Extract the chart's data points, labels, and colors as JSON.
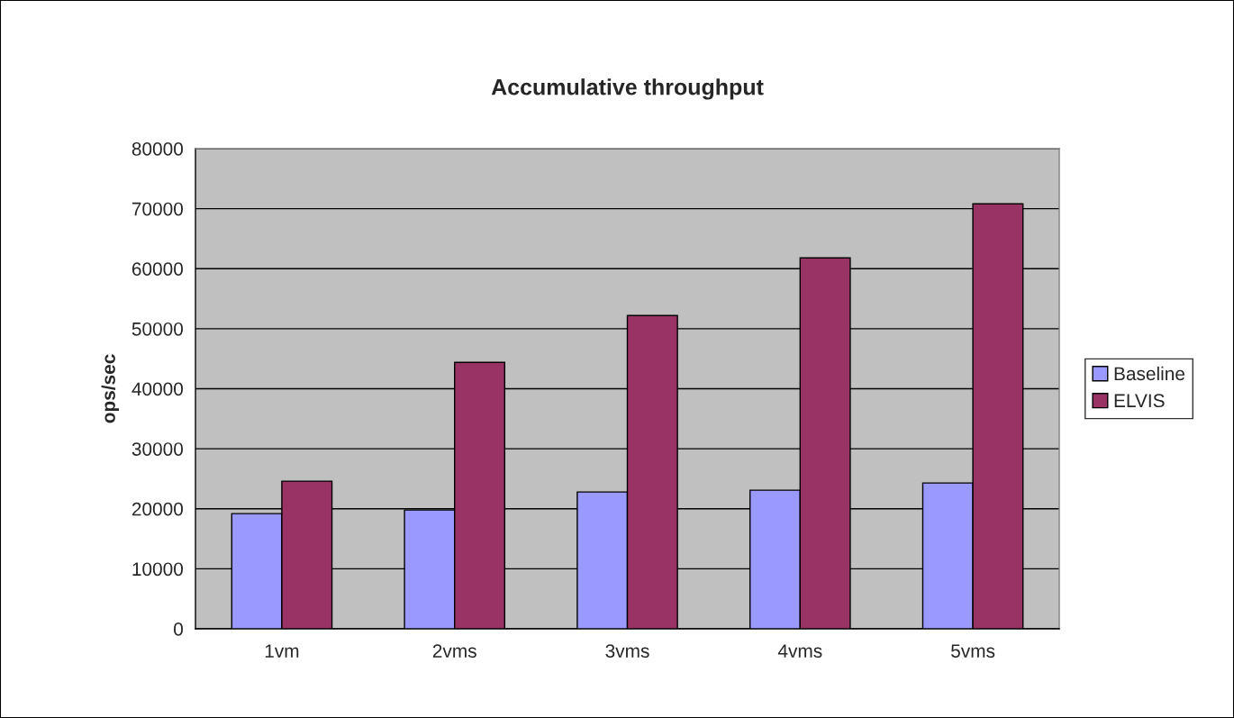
{
  "chart_data": {
    "type": "bar",
    "title": "Accumulative throughput",
    "ylabel": "ops/sec",
    "categories": [
      "1vm",
      "2vms",
      "3vms",
      "4vms",
      "5vms"
    ],
    "series": [
      {
        "name": "Baseline",
        "color": "#9999ff",
        "values": [
          19200,
          19800,
          22800,
          23100,
          24300
        ]
      },
      {
        "name": "ELVIS",
        "color": "#993366",
        "values": [
          24600,
          44400,
          52200,
          61800,
          70800
        ]
      }
    ],
    "ylim": [
      0,
      80000
    ],
    "yticks": [
      0,
      10000,
      20000,
      30000,
      40000,
      50000,
      60000,
      70000,
      80000
    ],
    "grid": "y",
    "legend": "right"
  }
}
